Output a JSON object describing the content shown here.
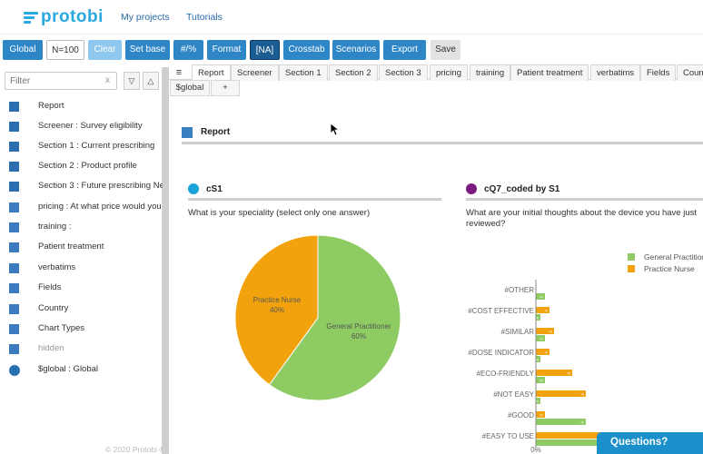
{
  "nav": {
    "logo_text": "protobi",
    "links": [
      "My projects",
      "Tutorials"
    ]
  },
  "toolbar": {
    "global": "Global",
    "n": "N=100",
    "clear": "Clear",
    "set_base": "Set base",
    "num_pct": "#/%",
    "format": "Format",
    "na": "[NA]",
    "crosstab": "Crosstab",
    "scenarios": "Scenarios",
    "export": "Export",
    "save": "Save"
  },
  "sidebar": {
    "filter_placeholder": "Filter",
    "filter_clear": "x",
    "sort_down": "▽",
    "sort_up": "△",
    "items": [
      {
        "label": "Report"
      },
      {
        "label": "Screener  : Survey eligibility"
      },
      {
        "label": "Section 1  : Current prescribing"
      },
      {
        "label": "Section 2  : Product profile"
      },
      {
        "label": "Section 3  : Future prescribing Ne"
      },
      {
        "label": "pricing  : At what price would you"
      },
      {
        "label": "training  :"
      },
      {
        "label": "Patient treatment"
      },
      {
        "label": "verbatims"
      },
      {
        "label": "Fields"
      },
      {
        "label": "Country"
      },
      {
        "label": "Chart Types"
      },
      {
        "label": "hidden"
      },
      {
        "label": "$global  : Global"
      }
    ],
    "copyright": "© 2020 Protobi ®"
  },
  "tabs": {
    "menu": "≡",
    "row1": [
      "Report",
      "Screener",
      "Section 1",
      "Section 2",
      "Section 3",
      "pricing",
      "training",
      "Patient treatment",
      "verbatims",
      "Fields",
      "Coun"
    ],
    "row2": [
      "$global",
      "+"
    ]
  },
  "report": {
    "title": "Report"
  },
  "panel1": {
    "name": "cS1",
    "question": "What is your speciality (select only one answer)",
    "dot_color": "#1aa3d6"
  },
  "panel2": {
    "name": "cQ7_coded  by  S1",
    "question": "What are your initial thoughts about the device you have just reviewed?",
    "dot_color": "#7b1a80"
  },
  "chart_data": [
    {
      "type": "pie",
      "categories": [
        "General Practitioner",
        "Practice Nurse"
      ],
      "values": [
        60,
        40
      ],
      "colors": [
        "#8ecc63",
        "#f2a20c"
      ],
      "labels": [
        "General Practitioner\n60%",
        "Practice Nurse\n40%"
      ]
    },
    {
      "type": "bar",
      "orientation": "horizontal",
      "categories": [
        "#OTHER",
        "#COST EFFECTIVE",
        "#SIMILAR",
        "#DOSE INDICATOR",
        "#ECO-FRIENDLY",
        "#NOT EASY",
        "#GOOD",
        "#EASY TO USE"
      ],
      "series": [
        {
          "name": "Practice Nurse",
          "color": "#f2a20c",
          "values": [
            0,
            3,
            4,
            3,
            8,
            11,
            2,
            20
          ]
        },
        {
          "name": "General Practitioner",
          "color": "#8ecc63",
          "values": [
            2,
            1,
            2,
            1,
            2,
            1,
            11,
            18
          ]
        }
      ],
      "legend": [
        "General Practition",
        "Practice Nurse"
      ],
      "x_tick": "0%",
      "legend_position": "top-right"
    }
  ],
  "questions_button": "Questions?"
}
